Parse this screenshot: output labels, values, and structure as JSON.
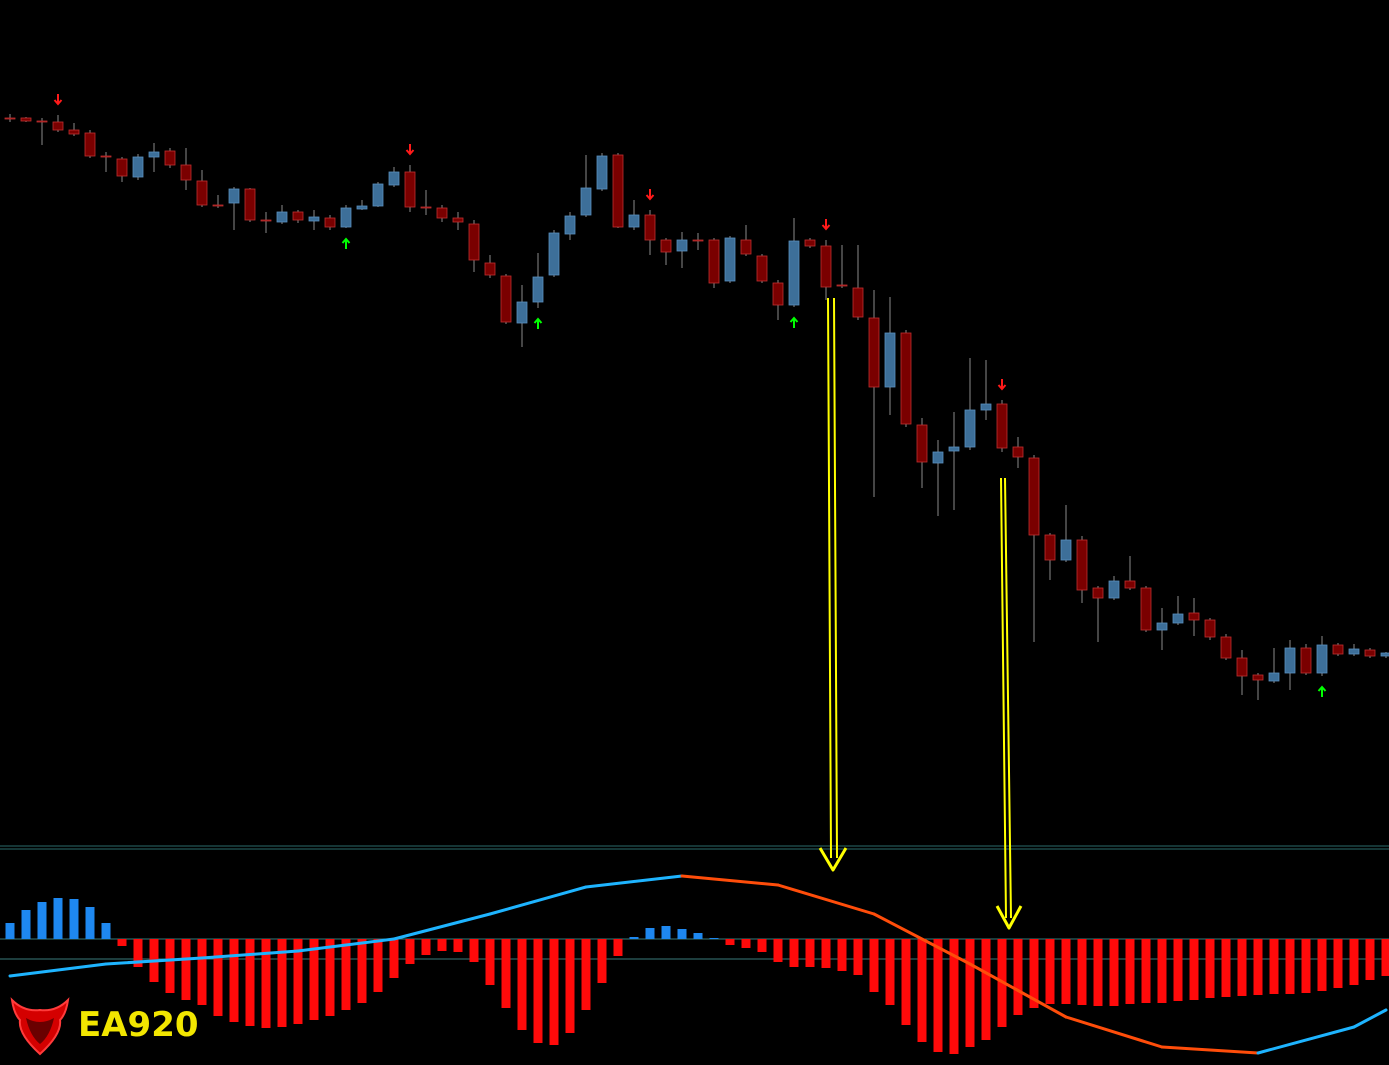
{
  "chart_data": [
    {
      "type": "candlestick",
      "ylim": [
        155,
        1000
      ],
      "up_color": "#3d6f99",
      "down_color": "#7a0000",
      "wick_color": "#8a8a8a",
      "buy_color": "#00ff00",
      "sell_color": "#ff1a1a",
      "candles": [
        [
          882,
          886,
          878,
          882
        ],
        [
          882,
          883,
          878,
          879
        ],
        [
          879,
          882,
          855,
          879
        ],
        [
          878,
          885,
          868,
          870
        ],
        [
          870,
          877,
          864,
          866
        ],
        [
          867,
          870,
          842,
          844
        ],
        [
          844,
          848,
          828,
          844
        ],
        [
          841,
          843,
          818,
          824
        ],
        [
          823,
          846,
          820,
          843
        ],
        [
          843,
          857,
          828,
          848
        ],
        [
          849,
          852,
          832,
          835
        ],
        [
          835,
          852,
          810,
          820
        ],
        [
          819,
          830,
          793,
          795
        ],
        [
          795,
          805,
          792,
          795
        ],
        [
          797,
          813,
          770,
          811
        ],
        [
          811,
          812,
          778,
          780
        ],
        [
          780,
          788,
          767,
          780
        ],
        [
          778,
          795,
          776,
          788
        ],
        [
          788,
          790,
          777,
          780
        ],
        [
          779,
          790,
          770,
          783
        ],
        [
          782,
          785,
          770,
          773
        ],
        [
          773,
          795,
          772,
          792
        ],
        [
          791,
          800,
          790,
          794
        ],
        [
          794,
          818,
          793,
          816
        ],
        [
          815,
          833,
          813,
          828
        ],
        [
          828,
          835,
          788,
          793
        ],
        [
          793,
          810,
          785,
          793
        ],
        [
          792,
          795,
          778,
          782
        ],
        [
          782,
          788,
          770,
          778
        ],
        [
          776,
          780,
          728,
          740
        ],
        [
          737,
          745,
          722,
          725
        ],
        [
          724,
          726,
          676,
          678
        ],
        [
          677,
          715,
          653,
          698
        ],
        [
          698,
          747,
          692,
          723
        ],
        [
          725,
          770,
          723,
          767
        ],
        [
          766,
          788,
          760,
          784
        ],
        [
          785,
          845,
          783,
          812
        ],
        [
          811,
          847,
          809,
          844
        ],
        [
          845,
          847,
          772,
          773
        ],
        [
          773,
          800,
          770,
          785
        ],
        [
          785,
          790,
          745,
          760
        ],
        [
          760,
          762,
          735,
          748
        ],
        [
          749,
          768,
          732,
          760
        ],
        [
          760,
          767,
          750,
          760
        ],
        [
          760,
          762,
          712,
          717
        ],
        [
          719,
          764,
          717,
          762
        ],
        [
          760,
          775,
          744,
          746
        ],
        [
          744,
          746,
          717,
          719
        ],
        [
          717,
          720,
          680,
          695
        ],
        [
          695,
          782,
          693,
          759
        ],
        [
          760,
          762,
          752,
          754
        ],
        [
          754,
          760,
          700,
          713
        ],
        [
          715,
          755,
          712,
          715
        ],
        [
          712,
          755,
          680,
          683
        ],
        [
          682,
          710,
          503,
          613
        ],
        [
          613,
          703,
          585,
          667
        ],
        [
          667,
          670,
          573,
          576
        ],
        [
          575,
          582,
          512,
          538
        ],
        [
          537,
          560,
          484,
          548
        ],
        [
          549,
          588,
          490,
          553
        ],
        [
          553,
          642,
          550,
          590
        ],
        [
          590,
          640,
          580,
          596
        ],
        [
          596,
          600,
          548,
          552
        ],
        [
          553,
          563,
          532,
          543
        ],
        [
          542,
          545,
          358,
          465
        ],
        [
          465,
          467,
          420,
          440
        ],
        [
          440,
          495,
          438,
          460
        ],
        [
          460,
          464,
          397,
          410
        ],
        [
          412,
          414,
          358,
          402
        ],
        [
          402,
          424,
          400,
          419
        ],
        [
          419,
          444,
          410,
          412
        ],
        [
          412,
          414,
          368,
          370
        ],
        [
          370,
          392,
          350,
          377
        ],
        [
          377,
          404,
          375,
          386
        ],
        [
          387,
          402,
          364,
          380
        ],
        [
          380,
          382,
          360,
          363
        ],
        [
          363,
          366,
          340,
          342
        ],
        [
          342,
          350,
          305,
          324
        ],
        [
          325,
          327,
          300,
          320
        ],
        [
          319,
          352,
          317,
          327
        ],
        [
          327,
          360,
          310,
          352
        ],
        [
          352,
          356,
          325,
          327
        ],
        [
          327,
          364,
          324,
          355
        ],
        [
          355,
          357,
          344,
          346
        ],
        [
          346,
          356,
          344,
          351
        ],
        [
          350,
          352,
          342,
          344
        ],
        [
          344,
          348,
          342,
          347
        ]
      ],
      "sell_signals": [
        3,
        25,
        40,
        51,
        62
      ],
      "buy_signals": [
        21,
        33,
        49,
        82
      ]
    },
    {
      "type": "bar",
      "ylim": [
        -126,
        91
      ],
      "levels": [
        0,
        -20
      ],
      "positive_color": "#1e88f0",
      "negative_color": "#ff0a0a",
      "rising_color": "#1eb4ff",
      "falling_color": "#ff4d0a",
      "values": [
        16,
        29,
        37,
        41,
        40,
        32,
        16,
        -7,
        -28,
        -43,
        -54,
        -61,
        -66,
        -77,
        -83,
        -87,
        -89,
        -88,
        -85,
        -81,
        -77,
        -71,
        -64,
        -53,
        -39,
        -25,
        -16,
        -12,
        -13,
        -23,
        -46,
        -69,
        -91,
        -104,
        -106,
        -94,
        -71,
        -44,
        -17,
        2,
        11,
        13,
        10,
        6,
        1,
        -6,
        -9,
        -13,
        -23,
        -28,
        -28,
        -29,
        -32,
        -36,
        -53,
        -66,
        -86,
        -103,
        -113,
        -115,
        -108,
        -101,
        -88,
        -76,
        -69,
        -65,
        -65,
        -66,
        -67,
        -67,
        -65,
        -64,
        -64,
        -62,
        -61,
        -59,
        -58,
        -57,
        -56,
        -55,
        -55,
        -54,
        -52,
        -49,
        -46,
        -41,
        -37
      ],
      "line_x": [
        0,
        6,
        12,
        18,
        24,
        30,
        36,
        42,
        48,
        54,
        60,
        66,
        72,
        78,
        84,
        86
      ],
      "line_values": [
        -37,
        -25,
        -19,
        -12,
        0,
        25,
        52,
        63,
        54,
        25,
        -25,
        -78,
        -108,
        -114,
        -88,
        -71
      ]
    }
  ],
  "watermark": "EA920"
}
